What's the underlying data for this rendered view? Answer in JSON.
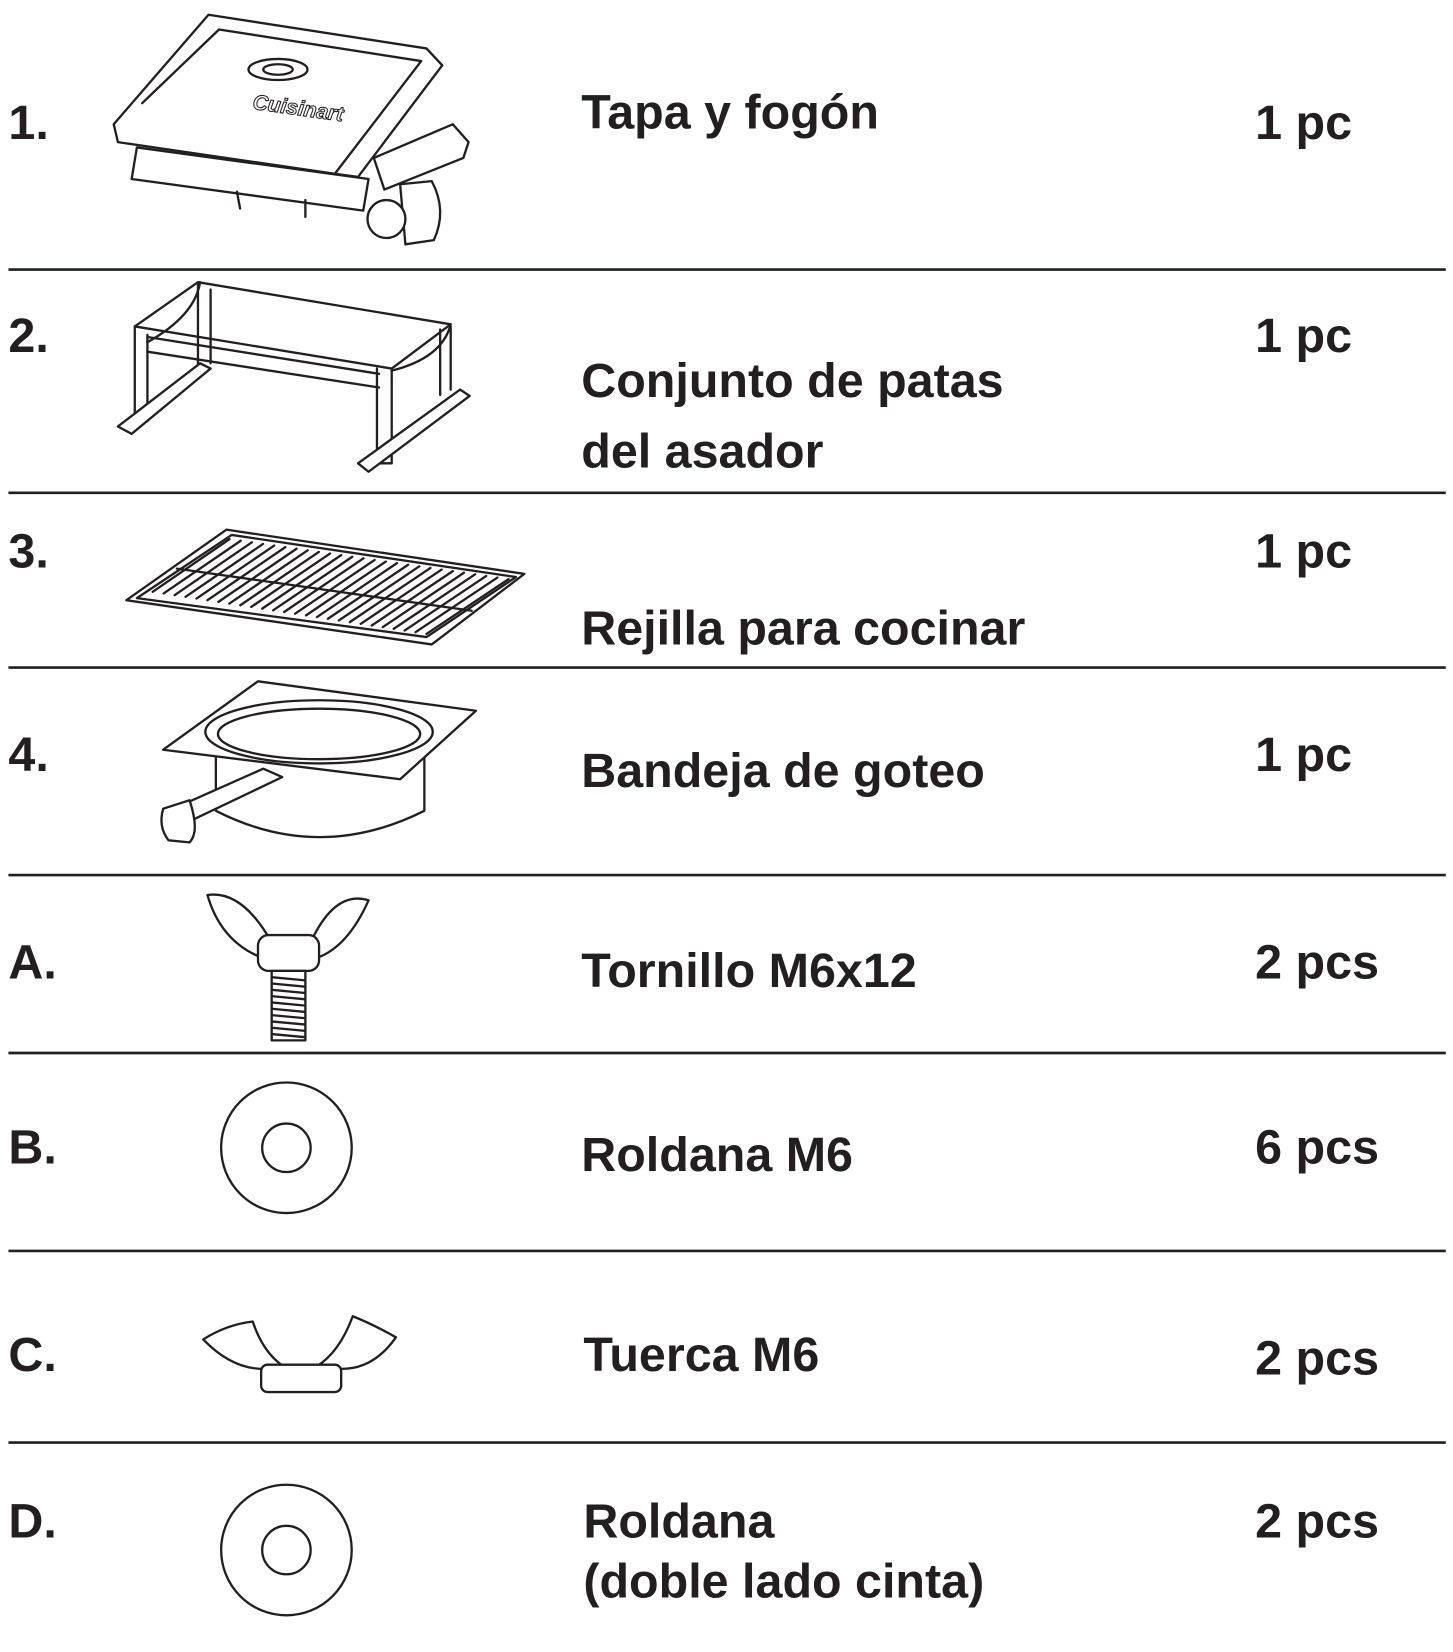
{
  "parts": [
    {
      "number": "1.",
      "name": [
        "Tapa y fogón"
      ],
      "quantity": "1 pc"
    },
    {
      "number": "2.",
      "name": [
        "Conjunto de patas",
        "del asador"
      ],
      "quantity": "1 pc"
    },
    {
      "number": "3.",
      "name": [
        "Rejilla para cocinar"
      ],
      "quantity": "1 pc"
    },
    {
      "number": "4.",
      "name": [
        "Bandeja de goteo"
      ],
      "quantity": "1 pc"
    },
    {
      "number": "A.",
      "name": [
        "Tornillo M6x12"
      ],
      "quantity": "2 pcs"
    },
    {
      "number": "B.",
      "name": [
        "Roldana M6"
      ],
      "quantity": "6 pcs"
    },
    {
      "number": "C.",
      "name": [
        "Tuerca M6"
      ],
      "quantity": "2 pcs"
    },
    {
      "number": "D.",
      "name": [
        "Roldana",
        "(doble lado cinta)"
      ],
      "quantity": "2 pcs"
    }
  ]
}
